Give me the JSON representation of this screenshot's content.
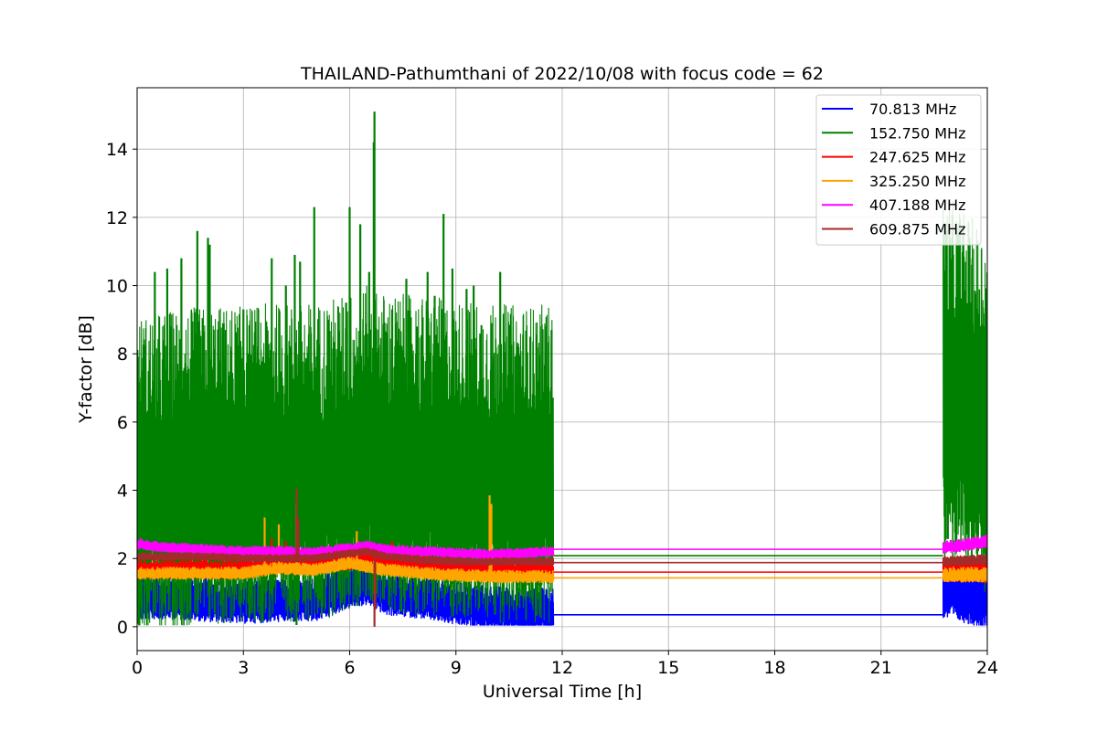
{
  "chart_data": {
    "type": "line",
    "title": "THAILAND-Pathumthani of 2022/10/08 with focus code = 62",
    "xlabel": "Universal Time [h]",
    "ylabel": "Y-factor [dB]",
    "xlim": [
      0,
      24
    ],
    "ylim": [
      -0.7,
      15.8
    ],
    "xticks": [
      0,
      3,
      6,
      9,
      12,
      15,
      18,
      21,
      24
    ],
    "yticks": [
      0,
      2,
      4,
      6,
      8,
      10,
      12,
      14
    ],
    "grid": true,
    "legend_position": "top-right",
    "data_gap": [
      11.75,
      22.75
    ],
    "series": [
      {
        "name": " 70.813 MHz",
        "color": "#0000ff",
        "gap_value": 0.35,
        "profile": [
          [
            0,
            0.75
          ],
          [
            1,
            0.8
          ],
          [
            2,
            0.7
          ],
          [
            3,
            0.65
          ],
          [
            4,
            0.7
          ],
          [
            5,
            0.7
          ],
          [
            6,
            1.1
          ],
          [
            6.5,
            1.2
          ],
          [
            7,
            0.9
          ],
          [
            8,
            0.8
          ],
          [
            9,
            0.6
          ],
          [
            10,
            0.5
          ],
          [
            11,
            0.4
          ],
          [
            11.75,
            0.45
          ],
          [
            22.75,
            1.05
          ],
          [
            23,
            1.0
          ],
          [
            24,
            0.75
          ]
        ],
        "spread": [
          0.35,
          0.5
        ],
        "spikes": [
          [
            6.2,
            1.7
          ],
          [
            6.6,
            1.9
          ],
          [
            10.5,
            0.05
          ],
          [
            22.8,
            1.8
          ],
          [
            23.1,
            1.7
          ]
        ]
      },
      {
        "name": "152.750 MHz",
        "color": "#008000",
        "gap_value": 2.08,
        "profile": [
          [
            0,
            3.9
          ],
          [
            1,
            4.1
          ],
          [
            2,
            4.2
          ],
          [
            3,
            4.2
          ],
          [
            4,
            4.3
          ],
          [
            5,
            4.3
          ],
          [
            6,
            4.6
          ],
          [
            6.5,
            4.8
          ],
          [
            7,
            4.6
          ],
          [
            8,
            4.5
          ],
          [
            9,
            4.4
          ],
          [
            10,
            4.3
          ],
          [
            11,
            4.2
          ],
          [
            11.75,
            4.3
          ],
          [
            22.75,
            6.5
          ],
          [
            23,
            6.5
          ],
          [
            24,
            5.6
          ]
        ],
        "spread": [
          2.6,
          3.0
        ],
        "spikes": [
          [
            0.5,
            10.4
          ],
          [
            0.85,
            10.5
          ],
          [
            1.25,
            10.8
          ],
          [
            1.7,
            11.6
          ],
          [
            2.0,
            11.4
          ],
          [
            2.05,
            11.2
          ],
          [
            2.5,
            8.7
          ],
          [
            3.0,
            9.3
          ],
          [
            3.8,
            10.8
          ],
          [
            4.2,
            10.0
          ],
          [
            4.45,
            10.9
          ],
          [
            4.6,
            10.7
          ],
          [
            5.0,
            12.3
          ],
          [
            5.4,
            9.0
          ],
          [
            5.9,
            9.5
          ],
          [
            6.0,
            12.3
          ],
          [
            6.3,
            11.8
          ],
          [
            6.55,
            10.4
          ],
          [
            6.7,
            15.1
          ],
          [
            6.68,
            14.2
          ],
          [
            7.2,
            9.3
          ],
          [
            7.6,
            10.2
          ],
          [
            7.9,
            8.8
          ],
          [
            8.2,
            10.4
          ],
          [
            8.4,
            9.7
          ],
          [
            8.65,
            12.1
          ],
          [
            8.9,
            10.5
          ],
          [
            9.3,
            9.9
          ],
          [
            9.5,
            10.0
          ],
          [
            10.0,
            8.9
          ],
          [
            10.25,
            10.4
          ],
          [
            10.75,
            8.3
          ],
          [
            11.1,
            8.5
          ],
          [
            11.55,
            8.8
          ],
          [
            11.7,
            8.7
          ],
          [
            22.85,
            11.6
          ],
          [
            23.2,
            11.2
          ],
          [
            23.5,
            11.4
          ],
          [
            23.9,
            8.8
          ],
          [
            4.5,
            0.05
          ]
        ]
      },
      {
        "name": "247.625 MHz",
        "color": "#ff0000",
        "gap_value": 1.6,
        "profile": [
          [
            0,
            1.65
          ],
          [
            2,
            1.65
          ],
          [
            3,
            1.65
          ],
          [
            4,
            1.8
          ],
          [
            5,
            1.8
          ],
          [
            6,
            1.9
          ],
          [
            6.5,
            2.1
          ],
          [
            7,
            1.9
          ],
          [
            8,
            1.8
          ],
          [
            9,
            1.7
          ],
          [
            10,
            1.65
          ],
          [
            11,
            1.6
          ],
          [
            11.75,
            1.62
          ],
          [
            22.75,
            1.65
          ],
          [
            24,
            1.6
          ]
        ],
        "spread": [
          0.15,
          0.2
        ],
        "spikes": [
          [
            3.8,
            2.6
          ],
          [
            4.2,
            2.5
          ],
          [
            6.7,
            2.4
          ],
          [
            7.2,
            2.5
          ]
        ]
      },
      {
        "name": "325.250 MHz",
        "color": "#ffa500",
        "gap_value": 1.43,
        "profile": [
          [
            0,
            1.55
          ],
          [
            2,
            1.55
          ],
          [
            3,
            1.55
          ],
          [
            4,
            1.7
          ],
          [
            5,
            1.65
          ],
          [
            6,
            1.85
          ],
          [
            6.5,
            1.75
          ],
          [
            7,
            1.65
          ],
          [
            8,
            1.55
          ],
          [
            9,
            1.5
          ],
          [
            10,
            1.45
          ],
          [
            11,
            1.45
          ],
          [
            11.75,
            1.45
          ],
          [
            22.75,
            1.5
          ],
          [
            24,
            1.5
          ]
        ],
        "spread": [
          0.1,
          0.12
        ],
        "spikes": [
          [
            3.6,
            3.2
          ],
          [
            4.0,
            3.0
          ],
          [
            4.5,
            3.6
          ],
          [
            6.2,
            2.8
          ],
          [
            9.95,
            3.85
          ],
          [
            10.0,
            3.6
          ]
        ]
      },
      {
        "name": "407.188 MHz",
        "color": "#ff00ff",
        "gap_value": 2.27,
        "profile": [
          [
            0,
            2.4
          ],
          [
            1,
            2.3
          ],
          [
            2,
            2.25
          ],
          [
            3,
            2.2
          ],
          [
            4,
            2.2
          ],
          [
            5,
            2.15
          ],
          [
            6,
            2.3
          ],
          [
            6.5,
            2.35
          ],
          [
            7,
            2.25
          ],
          [
            8,
            2.2
          ],
          [
            9,
            2.15
          ],
          [
            10,
            2.1
          ],
          [
            11,
            2.15
          ],
          [
            11.75,
            2.2
          ],
          [
            22.75,
            2.3
          ],
          [
            23.5,
            2.4
          ],
          [
            24,
            2.5
          ]
        ],
        "spread": [
          0.08,
          0.1
        ],
        "spikes": [
          [
            0.1,
            2.6
          ],
          [
            23.6,
            2.6
          ]
        ]
      },
      {
        "name": "609.875 MHz",
        "color": "#a52a2a",
        "gap_value": 1.88,
        "profile": [
          [
            0,
            2.05
          ],
          [
            1,
            2.05
          ],
          [
            2,
            2.05
          ],
          [
            3,
            2.0
          ],
          [
            4,
            2.0
          ],
          [
            5,
            2.0
          ],
          [
            6,
            2.15
          ],
          [
            6.5,
            2.2
          ],
          [
            7,
            2.05
          ],
          [
            8,
            1.95
          ],
          [
            9,
            1.9
          ],
          [
            10,
            1.9
          ],
          [
            11,
            1.9
          ],
          [
            11.75,
            1.9
          ],
          [
            22.75,
            1.9
          ],
          [
            24,
            1.95
          ]
        ],
        "spread": [
          0.06,
          0.08
        ],
        "spikes": [
          [
            4.5,
            4.05
          ],
          [
            4.55,
            3.2
          ],
          [
            6.7,
            0.0
          ],
          [
            6.72,
            0.5
          ]
        ]
      }
    ]
  }
}
